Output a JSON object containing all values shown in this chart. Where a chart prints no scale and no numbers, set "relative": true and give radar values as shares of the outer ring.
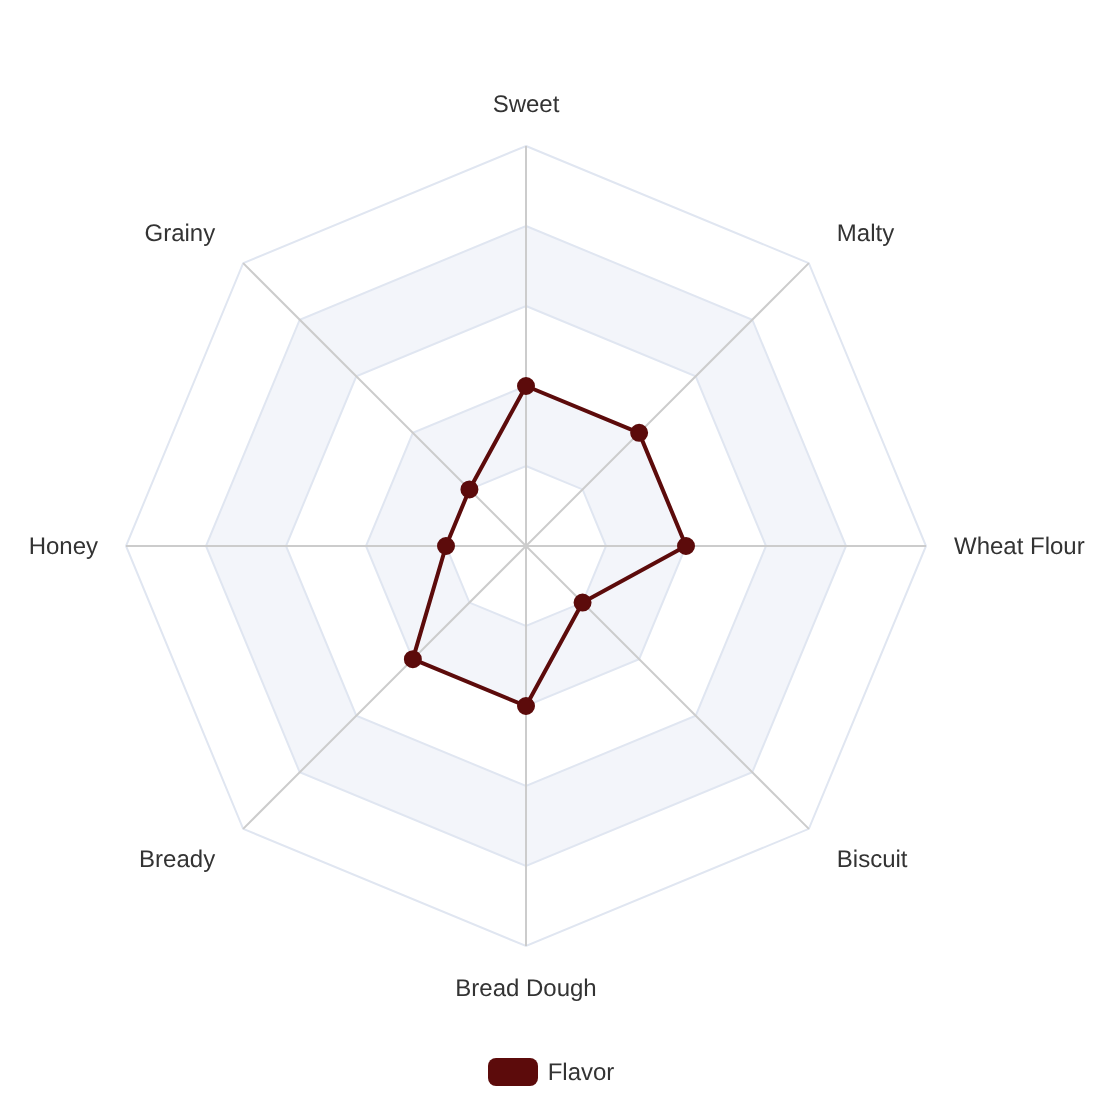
{
  "chart_data": {
    "type": "radar",
    "categories": [
      "Sweet",
      "Malty",
      "Wheat Flour",
      "Biscuit",
      "Bread Dough",
      "Bready",
      "Honey",
      "Grainy"
    ],
    "series": [
      {
        "name": "Flavor",
        "color": "#5c0b0b",
        "values": [
          0.4,
          0.4,
          0.4,
          0.2,
          0.4,
          0.4,
          0.2,
          0.2
        ]
      }
    ],
    "relative": true,
    "grid": true,
    "legend": "bottom",
    "marker": "circle",
    "line_style": "solid"
  }
}
